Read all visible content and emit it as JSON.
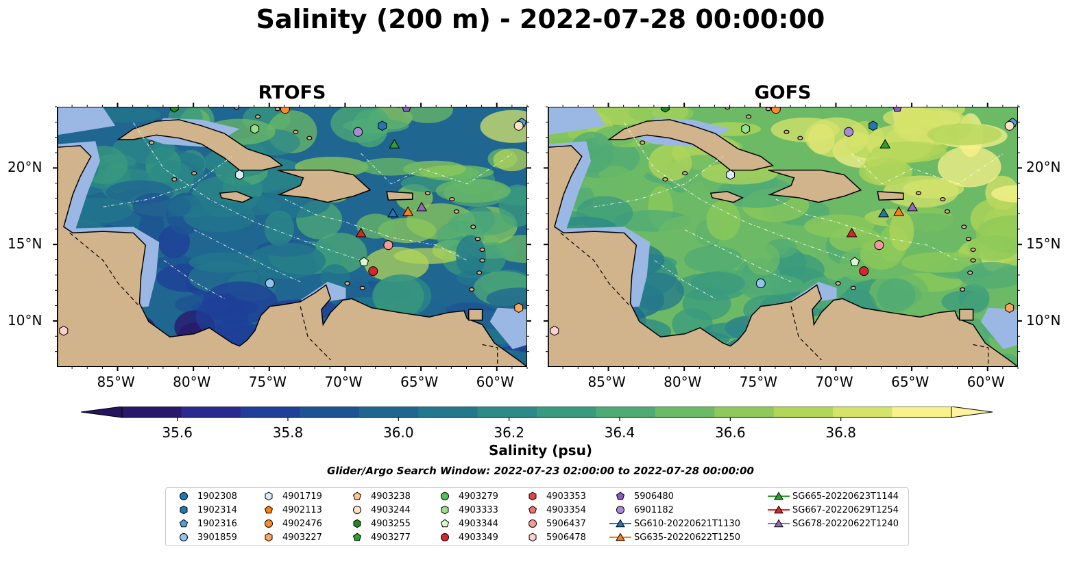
{
  "title": "Salinity (200 m) - 2022-07-28 00:00:00",
  "panels": [
    {
      "name": "RTOFS",
      "field_color": "#2a8a8a"
    },
    {
      "name": "GOFS",
      "field_color": "#6fbf5e"
    }
  ],
  "map": {
    "lon_range": [
      -89,
      -58
    ],
    "lat_range": [
      7,
      24
    ],
    "x_ticks": [
      "85°W",
      "80°W",
      "75°W",
      "70°W",
      "65°W",
      "60°W"
    ],
    "x_tick_values": [
      -85,
      -80,
      -75,
      -70,
      -65,
      -60
    ],
    "y_ticks": [
      "20°N",
      "15°N",
      "10°N"
    ],
    "y_tick_values": [
      20,
      15,
      10
    ],
    "land_color": "#d2b48c",
    "shelf_color": "#9ab8e3",
    "deep_color": "#2b1b6b"
  },
  "colorbar": {
    "label": "Salinity (psu)",
    "min": 35.5,
    "max": 37.0,
    "ticks": [
      "35.6",
      "35.8",
      "36.0",
      "36.2",
      "36.4",
      "36.6",
      "36.8"
    ],
    "tick_values": [
      35.6,
      35.8,
      36.0,
      36.2,
      36.4,
      36.6,
      36.8
    ],
    "colors": [
      "#29176b",
      "#282a90",
      "#1f3f98",
      "#1d5393",
      "#1f6690",
      "#23788c",
      "#2c8a87",
      "#3a9a7e",
      "#4fab75",
      "#6cba66",
      "#8ec95a",
      "#b2d65a",
      "#d6e36b",
      "#f8f28a"
    ],
    "extend_low_color": "#24145e",
    "extend_high_color": "#fdf29d"
  },
  "search_window": "Glider/Argo Search Window: 2022-07-23 02:00:00 to 2022-07-28 00:00:00",
  "legend": [
    {
      "label": "1902308",
      "marker": "circle",
      "color": "#1f77b4"
    },
    {
      "label": "1902314",
      "marker": "hexagon",
      "color": "#1f77b4"
    },
    {
      "label": "1902316",
      "marker": "pentagon",
      "color": "#4f9fd6"
    },
    {
      "label": "3901859",
      "marker": "circle",
      "color": "#8ec4ee"
    },
    {
      "label": "4901719",
      "marker": "hexagon",
      "color": "#d8ecfb"
    },
    {
      "label": "4902113",
      "marker": "pentagon",
      "color": "#ff7f0e"
    },
    {
      "label": "4902476",
      "marker": "circle",
      "color": "#ff8c2a"
    },
    {
      "label": "4903227",
      "marker": "hexagon",
      "color": "#ffa65c"
    },
    {
      "label": "4903238",
      "marker": "pentagon",
      "color": "#ffc48f"
    },
    {
      "label": "4903244",
      "marker": "circle",
      "color": "#ffe3c6"
    },
    {
      "label": "4903255",
      "marker": "hexagon",
      "color": "#1f8a1f"
    },
    {
      "label": "4903277",
      "marker": "pentagon",
      "color": "#2ca02c"
    },
    {
      "label": "4903279",
      "marker": "circle",
      "color": "#55c055"
    },
    {
      "label": "4903333",
      "marker": "hexagon",
      "color": "#98df8a"
    },
    {
      "label": "4903344",
      "marker": "pentagon",
      "color": "#d9f7d0"
    },
    {
      "label": "4903349",
      "marker": "circle",
      "color": "#d62728"
    },
    {
      "label": "4903353",
      "marker": "hexagon",
      "color": "#e04848"
    },
    {
      "label": "4903354",
      "marker": "pentagon",
      "color": "#ee7070"
    },
    {
      "label": "5906437",
      "marker": "circle",
      "color": "#f69a9a"
    },
    {
      "label": "5906478",
      "marker": "hexagon",
      "color": "#fcd0d0"
    },
    {
      "label": "5906480",
      "marker": "pentagon",
      "color": "#8a5ac0"
    },
    {
      "label": "6901182",
      "marker": "circle",
      "color": "#a98ad6"
    },
    {
      "label": "SG610-20220621T1130",
      "marker": "triangle",
      "color": "#1f77b4",
      "line": true
    },
    {
      "label": "SG635-20220622T1250",
      "marker": "triangle",
      "color": "#ff7f0e",
      "line": true
    },
    {
      "label": "SG665-20220623T1144",
      "marker": "triangle",
      "color": "#2ca02c",
      "line": true
    },
    {
      "label": "SG667-20220629T1254",
      "marker": "triangle",
      "color": "#d62728",
      "line": true
    },
    {
      "label": "SG678-20220622T1240",
      "marker": "triangle",
      "color": "#9467bd",
      "line": true
    }
  ],
  "platforms": [
    {
      "id": "1902308",
      "lon": -82.0,
      "lat": 24.4
    },
    {
      "id": "1902314",
      "lon": -67.6,
      "lat": 22.8
    },
    {
      "id": "1902316",
      "lon": -58.4,
      "lat": 23.0
    },
    {
      "id": "3901859",
      "lon": -75.0,
      "lat": 12.5
    },
    {
      "id": "4901719",
      "lon": -77.0,
      "lat": 19.6
    },
    {
      "id": "4902113",
      "lon": -74.2,
      "lat": 24.2
    },
    {
      "id": "4902476",
      "lon": -74.0,
      "lat": 23.9
    },
    {
      "id": "4903227",
      "lon": -58.6,
      "lat": 10.9
    },
    {
      "id": "4903238",
      "lon": -74.0,
      "lat": 24.3
    },
    {
      "id": "4903244",
      "lon": -58.6,
      "lat": 22.8
    },
    {
      "id": "4903255",
      "lon": -81.3,
      "lat": 24.0
    },
    {
      "id": "4903277",
      "lon": -81.0,
      "lat": 24.3
    },
    {
      "id": "4903279",
      "lon": -72.5,
      "lat": 24.5
    },
    {
      "id": "4903333",
      "lon": -76.0,
      "lat": 22.6
    },
    {
      "id": "4903344",
      "lon": -68.8,
      "lat": 13.9
    },
    {
      "id": "4903349",
      "lon": -68.2,
      "lat": 13.3
    },
    {
      "id": "4903353",
      "lon": -66.5,
      "lat": 24.3
    },
    {
      "id": "4903354",
      "lon": -62.5,
      "lat": 24.4
    },
    {
      "id": "5906437",
      "lon": -67.2,
      "lat": 15.0
    },
    {
      "id": "5906478",
      "lon": -88.6,
      "lat": 9.4
    },
    {
      "id": "5906480",
      "lon": -66.0,
      "lat": 24.0
    },
    {
      "id": "6901182",
      "lon": -69.2,
      "lat": 22.4
    },
    {
      "id": "SG610-20220621T1130",
      "lon": -66.9,
      "lat": 17.1
    },
    {
      "id": "SG635-20220622T1250",
      "lon": -65.9,
      "lat": 17.2
    },
    {
      "id": "SG665-20220623T1144",
      "lon": -66.8,
      "lat": 21.6
    },
    {
      "id": "SG667-20220629T1254",
      "lon": -69.0,
      "lat": 15.8
    },
    {
      "id": "SG678-20220622T1240",
      "lon": -65.0,
      "lat": 17.5
    }
  ]
}
